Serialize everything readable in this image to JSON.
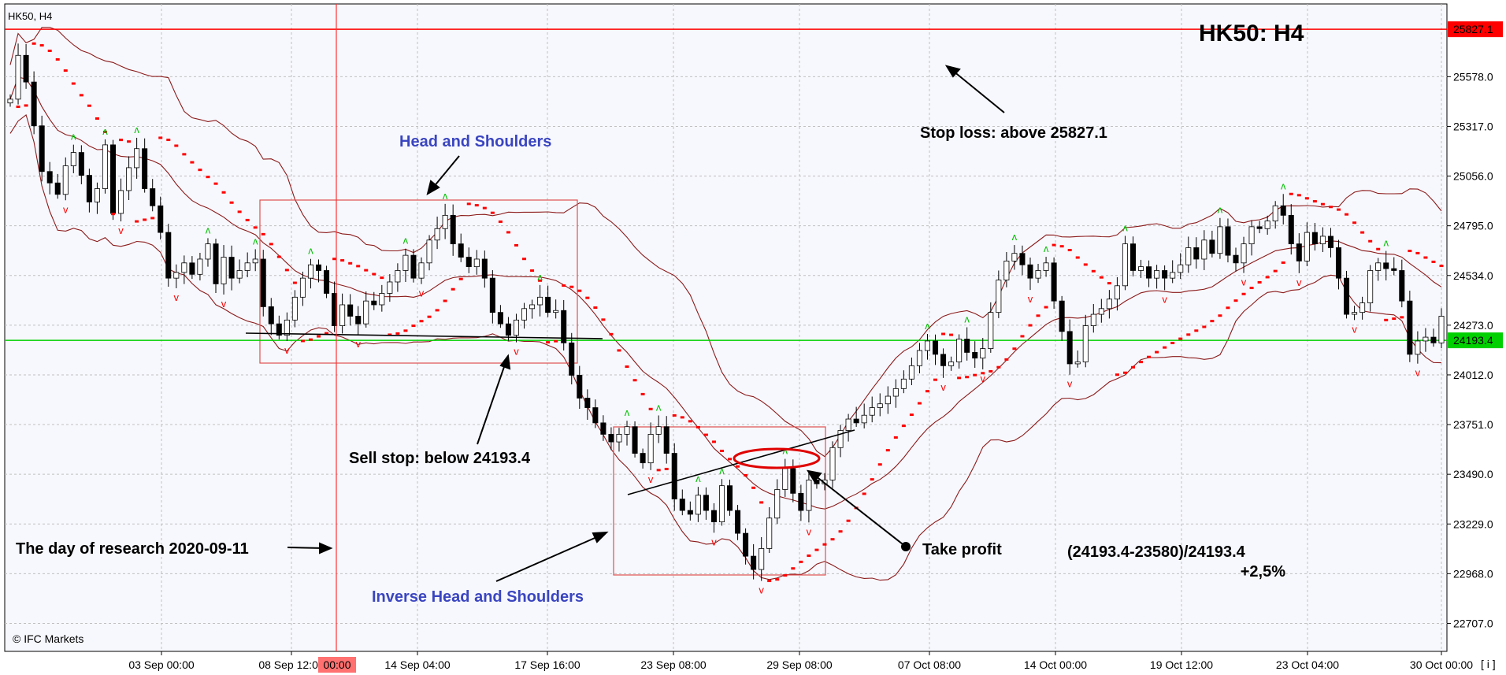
{
  "header": {
    "symbol_label": "HK50, H4",
    "big_title": "HK50: H4"
  },
  "watermark": "© IFC Markets",
  "scale_button": "[ i ]",
  "colors": {
    "bull": "#ffffff",
    "bear": "#000000",
    "grid": "#c0c0c0",
    "band": "#8b1a1a",
    "sar": "#ff0000",
    "stop_line": "#ff0000",
    "entry_line": "#00d000",
    "arrow_up": "#00c000",
    "arrow_down": "#ff0000",
    "pattern_label": "#3a45c0"
  },
  "price_axis": {
    "ticks": [
      "25578.0",
      "25317.0",
      "25056.0",
      "24795.0",
      "24534.0",
      "24273.0",
      "24012.0",
      "23751.0",
      "23490.0",
      "23229.0",
      "22968.0",
      "22707.0"
    ],
    "stop_tag": "25827.1",
    "entry_tag": "24193.4"
  },
  "time_axis": {
    "labels": [
      "03 Sep 00:00",
      "08 Sep 12:00",
      "14 Sep 04:00",
      "17 Sep 16:00",
      "23 Sep 08:00",
      "29 Sep 08:00",
      "07 Oct 08:00",
      "14 Oct 00:00",
      "19 Oct 12:00",
      "23 Oct 04:00",
      "30 Oct 00:00"
    ],
    "highlight_tag": "00:00"
  },
  "annotations": {
    "stop_loss": "Stop loss: above 25827.1",
    "head_shoulders": "Head and Shoulders",
    "sell_stop": "Sell stop: below 24193.4",
    "research_day": "The day of research 2020-09-11",
    "inverse_hs": "Inverse Head and Shoulders",
    "take_profit": "Take profit",
    "calc_line1": "(24193.4-23580)/24193.4",
    "calc_line2": "+2,5%"
  },
  "chart_data": {
    "type": "candlestick",
    "symbol": "HK50",
    "timeframe": "H4",
    "ylim": [
      22560,
      25960
    ],
    "stop_loss": 25827.1,
    "sell_stop": 24193.4,
    "take_profit": 23580,
    "closes": [
      25460,
      25690,
      25550,
      25320,
      25080,
      25020,
      24960,
      25110,
      25180,
      25060,
      24920,
      24990,
      25220,
      24860,
      24980,
      25100,
      25200,
      24990,
      24900,
      24760,
      24520,
      24550,
      24600,
      24540,
      24620,
      24700,
      24490,
      24630,
      24520,
      24560,
      24600,
      24620,
      24370,
      24280,
      24220,
      24300,
      24420,
      24520,
      24590,
      24560,
      24440,
      24270,
      24380,
      24320,
      24280,
      24400,
      24380,
      24440,
      24500,
      24560,
      24640,
      24520,
      24600,
      24720,
      24780,
      24850,
      24700,
      24630,
      24580,
      24620,
      24520,
      24340,
      24280,
      24220,
      24300,
      24360,
      24380,
      24420,
      24340,
      24350,
      24180,
      24010,
      23890,
      23840,
      23760,
      23700,
      23660,
      23700,
      23740,
      23600,
      23550,
      23700,
      23740,
      23600,
      23360,
      23300,
      23280,
      23380,
      23300,
      23240,
      23430,
      23300,
      23180,
      23060,
      22990,
      23100,
      23260,
      23410,
      23520,
      23390,
      23300,
      23460,
      23440,
      23460,
      23630,
      23720,
      23780,
      23760,
      23800,
      23840,
      23860,
      23900,
      23940,
      23990,
      24060,
      24140,
      24190,
      24120,
      24060,
      24080,
      24200,
      24130,
      24100,
      24150,
      24340,
      24510,
      24610,
      24650,
      24590,
      24520,
      24560,
      24600,
      24400,
      24240,
      24070,
      24080,
      24270,
      24330,
      24360,
      24410,
      24480,
      24700,
      24560,
      24580,
      24520,
      24560,
      24520,
      24550,
      24590,
      24680,
      24620,
      24720,
      24650,
      24790,
      24640,
      24600,
      24700,
      24790,
      24780,
      24820,
      24900,
      24850,
      24700,
      24610,
      24760,
      24700,
      24740,
      24680,
      24520,
      24330,
      24340,
      24390,
      24560,
      24600,
      24570,
      24560,
      24400,
      24120,
      24190,
      24210,
      24180,
      24320
    ],
    "time_labels": [
      "03 Sep 00:00",
      "08 Sep 12:00",
      "14 Sep 04:00",
      "17 Sep 16:00",
      "23 Sep 08:00",
      "29 Sep 08:00",
      "07 Oct 08:00",
      "14 Oct 00:00",
      "19 Oct 12:00",
      "23 Oct 04:00",
      "30 Oct 00:00"
    ],
    "price_ticks": [
      25578.0,
      25317.0,
      25056.0,
      24795.0,
      24534.0,
      24273.0,
      24012.0,
      23751.0,
      23490.0,
      23229.0,
      22968.0,
      22707.0
    ],
    "indicators": [
      "Bollinger Bands",
      "Parabolic SAR",
      "Fractals"
    ],
    "grid": true
  }
}
